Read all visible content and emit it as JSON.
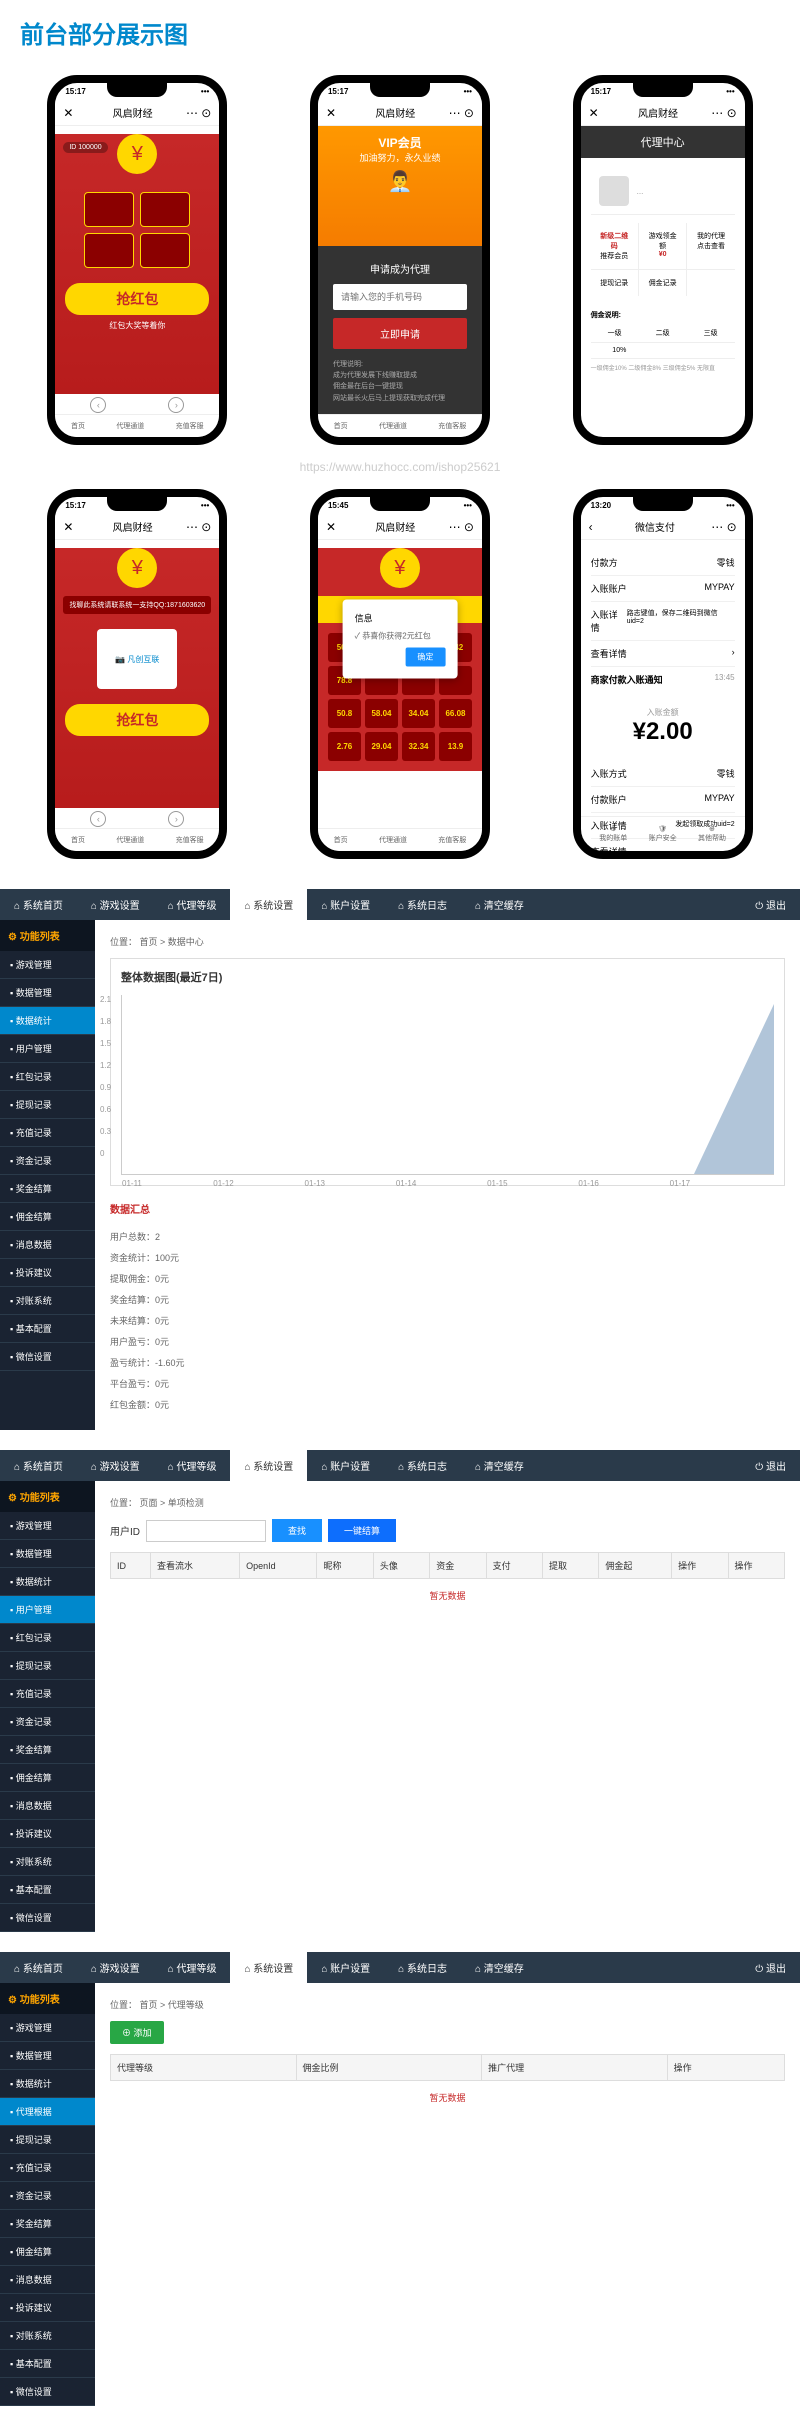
{
  "page_title": "前台部分展示图",
  "watermark": "https://www.huzhocc.com/ishop25621",
  "phones": {
    "p1": {
      "time": "15:17",
      "app": "风启财经",
      "id": "ID 100000",
      "banner": "抢红包",
      "sub": "红包大奖等着你",
      "nav": [
        "首页",
        "代理通道",
        "充值客服"
      ]
    },
    "p2": {
      "time": "15:17",
      "app": "风启财经",
      "vip": "VIP会员",
      "slogan": "加油努力，永久业绩",
      "form_title": "申请成为代理",
      "placeholder": "请输入您的手机号码",
      "btn": "立即申请",
      "desc_title": "代理说明:",
      "desc": [
        "成为代理发展下线赚取提成",
        "佣金最在后台一键提现",
        "网站最长火后马上提现获取完成代理"
      ]
    },
    "p3": {
      "time": "15:17",
      "app": "风启财经",
      "title": "代理中心",
      "cells": [
        {
          "l": "新级二维码",
          "v": "推荐会员"
        },
        {
          "l": "游戏领金额",
          "v": "¥0"
        },
        {
          "l": "我的代理",
          "v": "点击查看"
        },
        {
          "l": "提现记录",
          "v": ""
        },
        {
          "l": "佣金记录",
          "v": ""
        }
      ],
      "comm_title": "佣金说明:",
      "comm_head": [
        "一级",
        "二级",
        "三级"
      ],
      "comm_vals": [
        "10%",
        "",
        ""
      ],
      "comm_note": "一级佣金10% 二级佣金8% 三级佣金5% 无限直"
    },
    "p4": {
      "time": "15:17",
      "app": "风启财经",
      "notice": "找聊此系统请联系统一支持QQ:1871603620",
      "banner": "抢红包"
    },
    "p5": {
      "time": "15:45",
      "app": "风启财经",
      "hb_title": "红包等你来",
      "grid": [
        "50.8",
        "58.04",
        "34.04",
        "1.42",
        "78.8",
        "",
        "",
        "",
        "50.8",
        "58.04",
        "34.04",
        "66.08",
        "2.76",
        "29.04",
        "32.34",
        "13.9"
      ],
      "modal_title": "信息",
      "modal_text": "恭喜你获得2元红包",
      "modal_btn": "确定"
    },
    "p6": {
      "time": "13:20",
      "app": "微信支付",
      "rows1": [
        {
          "l": "付款方",
          "v": "零钱"
        },
        {
          "l": "入账账户",
          "v": "MYPAY"
        },
        {
          "l": "入账详情",
          "v": "路志键值，保存二维码到微信uid=2"
        }
      ],
      "detail": "查看详情",
      "notice": "商家付款入账通知",
      "time2": "13:45",
      "amt_label": "入账金额",
      "amt": "¥2.00",
      "rows2": [
        {
          "l": "入账方式",
          "v": "零钱"
        },
        {
          "l": "付款账户",
          "v": "MYPAY"
        },
        {
          "l": "入账详情",
          "v": "发起领取成功uid=2"
        }
      ],
      "footer": [
        "我的账单",
        "账户安全",
        "其他帮助"
      ]
    }
  },
  "admin": {
    "top_nav": [
      "系统首页",
      "游戏设置",
      "代理等级",
      "系统设置",
      "账户设置",
      "系统日志",
      "清空缓存"
    ],
    "top_right": "退出",
    "sidebar_title": "功能列表",
    "sidebars": [
      [
        "游戏管理",
        "数据管理",
        "数据统计",
        "用户管理",
        "红包记录",
        "提现记录",
        "充值记录",
        "资金记录",
        "奖金结算",
        "佣金结算",
        "消息数据",
        "投诉建议",
        "对账系统",
        "基本配置",
        "微信设置"
      ],
      [
        "游戏管理",
        "数据管理",
        "数据统计",
        "用户管理",
        "红包记录",
        "提现记录",
        "充值记录",
        "资金记录",
        "奖金结算",
        "佣金结算",
        "消息数据",
        "投诉建议",
        "对账系统",
        "基本配置",
        "微信设置"
      ],
      [
        "游戏管理",
        "数据管理",
        "数据统计",
        "代理根据",
        "提现记录",
        "充值记录",
        "资金记录",
        "奖金结算",
        "佣金结算",
        "消息数据",
        "投诉建议",
        "对账系统",
        "基本配置",
        "微信设置"
      ]
    ],
    "panel1": {
      "breadcrumb": "位置： 首页 > 数据中心",
      "chart_title": "整体数据图(最近7日)",
      "ylabels": [
        "2.1",
        "1.8",
        "1.5",
        "1.2",
        "0.9",
        "0.6",
        "0.3",
        "0"
      ],
      "xlabels": [
        "01-11",
        "01-12",
        "01-13",
        "01-14",
        "01-15",
        "01-16",
        "01-17"
      ],
      "summary_title": "数据汇总",
      "summary": [
        {
          "l": "用户总数",
          "v": "2"
        },
        {
          "l": "资金统计",
          "v": "100元"
        },
        {
          "l": "提取佣金",
          "v": "0元"
        },
        {
          "l": "奖金结算",
          "v": "0元"
        },
        {
          "l": "未来结算",
          "v": "0元"
        },
        {
          "l": "用户盈亏",
          "v": "0元"
        },
        {
          "l": "盈亏统计",
          "v": "-1.60元"
        },
        {
          "l": "平台盈亏",
          "v": "0元"
        },
        {
          "l": "红包金额",
          "v": "0元"
        }
      ]
    },
    "panel2": {
      "breadcrumb": "位置： 页面 > 单项检测",
      "search_label": "用户ID",
      "btn1": "查找",
      "btn2": "一键结算",
      "cols": [
        "ID",
        "查看流水",
        "OpenId",
        "昵称",
        "头像",
        "资金",
        "支付",
        "提取",
        "佣金起",
        "操作",
        "操作"
      ],
      "empty": "暂无数据"
    },
    "panel3": {
      "breadcrumb": "位置： 首页 > 代理等级",
      "add": "添加",
      "cols": [
        "代理等级",
        "佣金比例",
        "推广代理",
        "操作"
      ],
      "empty": "暂无数据"
    }
  }
}
